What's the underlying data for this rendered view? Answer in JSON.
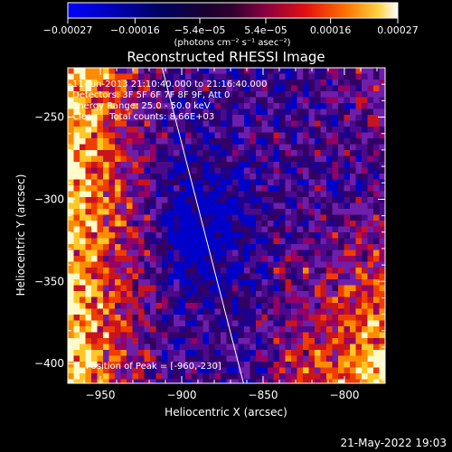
{
  "chart_data": {
    "type": "heatmap",
    "title": "Reconstructed RHESSI Image",
    "xlabel": "Heliocentric X (arcsec)",
    "ylabel": "Heliocentric Y (arcsec)",
    "xlim": [
      -970,
      -775
    ],
    "ylim": [
      -412,
      -220
    ],
    "xticks": [
      -950,
      -900,
      -850,
      -800
    ],
    "xtick_labels": [
      "−950",
      "−900",
      "−850",
      "−800"
    ],
    "yticks": [
      -400,
      -350,
      -300,
      -250
    ],
    "ytick_labels": [
      "−400",
      "−350",
      "−300",
      "−250"
    ],
    "colorbar": {
      "range": [
        -0.00027,
        0.00027
      ],
      "ticks": [
        -0.00027,
        -0.00016,
        -5.4e-05,
        5.4e-05,
        0.00016,
        0.00027
      ],
      "tick_labels": [
        "−0.00027",
        "−0.00016",
        "−5.4e−05",
        "5.4e−05",
        "0.00016",
        "0.00027"
      ],
      "unit_label": "(photons cm⁻² s⁻¹ asec⁻²)",
      "colors": [
        "#0000ff",
        "#00007a",
        "#2a0050",
        "#4b0090",
        "#9a0060",
        "#d01010",
        "#ff6000",
        "#ffc020",
        "#ffffff"
      ]
    },
    "annotations": {
      "time": "11-Jun-2013 21:10:40.000 to 21:16:40.000",
      "detectors": "Detectors: 3F 5F 6F 7F 8F 9F, Att 0",
      "energy": "Energy Range: 25.0 - 50.0 keV",
      "clean": "Clean    Total counts: 8.66E+03",
      "peak": "Position of Peak = [-960,-230]"
    },
    "limb_line": {
      "x": [
        -912,
        -862
      ],
      "y": [
        -220,
        -412
      ]
    },
    "grid": false
  },
  "footer": {
    "timestamp": "21-May-2022 19:03"
  }
}
